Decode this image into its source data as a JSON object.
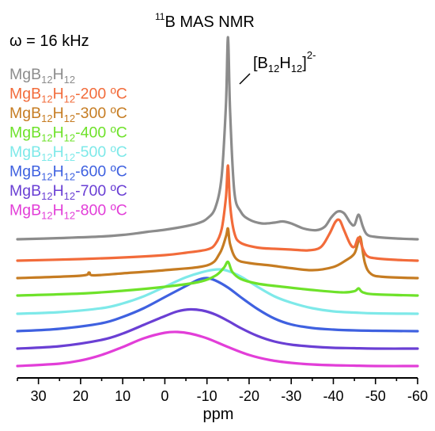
{
  "chart_data": {
    "type": "line",
    "title_sup": "11",
    "title": "B MAS NMR",
    "spin_rate_label": "ω = 16 kHz",
    "annotation": {
      "main": "[B",
      "sub1": "12",
      "mid": "H",
      "sub2": "12",
      "close": "]",
      "sup": "2-"
    },
    "xlabel": "ppm",
    "x_reversed": true,
    "xlim": [
      35,
      -60
    ],
    "xticks": [
      30,
      20,
      10,
      0,
      -10,
      -20,
      -30,
      -40,
      -50,
      -60
    ],
    "xtick_labels": [
      "30",
      "20",
      "10",
      "0",
      "-10",
      "-20",
      "-30",
      "-40",
      "-50",
      "-60"
    ],
    "y_axis_shown": false,
    "grid": false,
    "legend_placement": "top-left",
    "series": [
      {
        "name": "MgB12H12",
        "label": {
          "p1": "MgB",
          "s1": "12",
          "p2": "H",
          "s2": "12",
          "p3": ""
        },
        "color": "#8c8c8c",
        "x": [
          35,
          25,
          15,
          10,
          6,
          4,
          0,
          -5,
          -8,
          -10,
          -12,
          -13.5,
          -14.5,
          -15,
          -15.5,
          -16.5,
          -18,
          -20,
          -23,
          -26,
          -28,
          -30,
          -33,
          -36,
          -38,
          -39.5,
          -41,
          -42.5,
          -44,
          -45,
          -46,
          -47,
          -48,
          -50,
          -55,
          -60
        ],
        "y": [
          0.0,
          0.03,
          0.07,
          0.11,
          0.16,
          0.19,
          0.24,
          0.33,
          0.41,
          0.52,
          0.8,
          1.6,
          3.4,
          5.1,
          3.2,
          1.2,
          0.7,
          0.5,
          0.4,
          0.42,
          0.45,
          0.4,
          0.27,
          0.23,
          0.32,
          0.55,
          0.7,
          0.66,
          0.42,
          0.36,
          0.62,
          0.32,
          0.12,
          0.06,
          0.02,
          0.0
        ]
      },
      {
        "name": "MgB12H12-200 ºC",
        "label": {
          "p1": "MgB",
          "s1": "12",
          "p2": "H",
          "s2": "12",
          "p3": "-200 ºC"
        },
        "color": "#f26b3a",
        "x": [
          35,
          20,
          10,
          0,
          -5,
          -10,
          -12,
          -13.5,
          -14.5,
          -15,
          -15.5,
          -16.5,
          -18,
          -22,
          -26,
          -30,
          -34,
          -37,
          -39,
          -40.5,
          -41.5,
          -42.5,
          -44,
          -45,
          -46,
          -47,
          -48,
          -50,
          -55,
          -60
        ],
        "y": [
          0.0,
          0.04,
          0.08,
          0.14,
          0.2,
          0.28,
          0.42,
          0.8,
          1.6,
          2.4,
          1.4,
          0.7,
          0.45,
          0.33,
          0.3,
          0.28,
          0.26,
          0.34,
          0.66,
          0.98,
          1.02,
          0.78,
          0.42,
          0.35,
          0.58,
          0.3,
          0.12,
          0.06,
          0.02,
          0.0
        ]
      },
      {
        "name": "MgB12H12-300 ºC",
        "label": {
          "p1": "MgB",
          "s1": "12",
          "p2": "H",
          "s2": "12",
          "p3": "-300 ºC"
        },
        "color": "#c67c22",
        "x": [
          35,
          20,
          18,
          17,
          10,
          0,
          -10,
          -13,
          -14.5,
          -15,
          -15.5,
          -17,
          -20,
          -25,
          -30,
          -35,
          -40,
          -43,
          -45,
          -46,
          -46.5,
          -47.5,
          -49,
          -52,
          -60
        ],
        "y": [
          0.0,
          0.06,
          0.14,
          0.07,
          0.12,
          0.2,
          0.32,
          0.62,
          1.05,
          1.25,
          0.85,
          0.48,
          0.38,
          0.32,
          0.25,
          0.2,
          0.28,
          0.45,
          0.62,
          0.95,
          1.0,
          0.38,
          0.1,
          0.03,
          0.0
        ]
      },
      {
        "name": "MgB12H12-400 ºC",
        "label": {
          "p1": "MgB",
          "s1": "12",
          "p2": "H",
          "s2": "12",
          "p3": "-400 ºC"
        },
        "color": "#6ee22a",
        "x": [
          35,
          20,
          10,
          0,
          -8,
          -12,
          -14,
          -15,
          -16,
          -18,
          -22,
          -28,
          -35,
          -42,
          -45,
          -46,
          -47,
          -50,
          -60
        ],
        "y": [
          0.0,
          0.05,
          0.12,
          0.22,
          0.34,
          0.5,
          0.7,
          0.85,
          0.6,
          0.42,
          0.3,
          0.22,
          0.14,
          0.08,
          0.11,
          0.18,
          0.08,
          0.03,
          0.0
        ]
      },
      {
        "name": "MgB12H12-500 ºC",
        "label": {
          "p1": "MgB",
          "s1": "12",
          "p2": "H",
          "s2": "12",
          "p3": "-500 ºC"
        },
        "color": "#7ee9e9",
        "x": [
          35,
          25,
          15,
          10,
          5,
          0,
          -5,
          -10,
          -13,
          -15,
          -18,
          -22,
          -26,
          -30,
          -35,
          -40,
          -45,
          -50,
          -60
        ],
        "y": [
          0.0,
          0.04,
          0.14,
          0.26,
          0.44,
          0.68,
          0.92,
          1.08,
          1.12,
          1.08,
          0.94,
          0.68,
          0.44,
          0.28,
          0.14,
          0.06,
          0.03,
          0.01,
          0.0
        ]
      },
      {
        "name": "MgB12H12-600 ºC",
        "label": {
          "p1": "MgB",
          "s1": "12",
          "p2": "H",
          "s2": "12",
          "p3": "-600 ºC"
        },
        "color": "#3f61e0",
        "x": [
          35,
          25,
          15,
          10,
          5,
          0,
          -5,
          -8,
          -10,
          -12,
          -15,
          -18,
          -22,
          -26,
          -30,
          -35,
          -40,
          -45,
          -50,
          -60
        ],
        "y": [
          0.0,
          0.06,
          0.2,
          0.36,
          0.58,
          0.86,
          1.14,
          1.3,
          1.34,
          1.28,
          1.1,
          0.86,
          0.56,
          0.32,
          0.17,
          0.08,
          0.04,
          0.02,
          0.01,
          0.0
        ]
      },
      {
        "name": "MgB12H12-700 ºC",
        "label": {
          "p1": "MgB",
          "s1": "12",
          "p2": "H",
          "s2": "12",
          "p3": "-700 ºC"
        },
        "color": "#6a3fd4",
        "x": [
          35,
          25,
          15,
          10,
          5,
          0,
          -3,
          -6,
          -9,
          -12,
          -15,
          -18,
          -22,
          -26,
          -30,
          -35,
          -40,
          -45,
          -50,
          -60
        ],
        "y": [
          0.0,
          0.06,
          0.22,
          0.38,
          0.6,
          0.82,
          0.94,
          0.99,
          0.96,
          0.86,
          0.7,
          0.52,
          0.32,
          0.18,
          0.1,
          0.05,
          0.02,
          0.01,
          0.0,
          0.0
        ]
      },
      {
        "name": "MgB12H12-800 ºC",
        "label": {
          "p1": "MgB",
          "s1": "12",
          "p2": "H",
          "s2": "12",
          "p3": "-800 ºC"
        },
        "color": "#e23ed8",
        "x": [
          35,
          25,
          20,
          15,
          10,
          5,
          0,
          -3,
          -6,
          -10,
          -15,
          -20,
          -25,
          -30,
          -35,
          -40,
          -45,
          -50,
          -60
        ],
        "y": [
          0.0,
          0.06,
          0.14,
          0.28,
          0.48,
          0.7,
          0.84,
          0.86,
          0.82,
          0.7,
          0.48,
          0.28,
          0.15,
          0.08,
          0.04,
          0.02,
          0.01,
          0.0,
          0.0
        ]
      }
    ]
  }
}
